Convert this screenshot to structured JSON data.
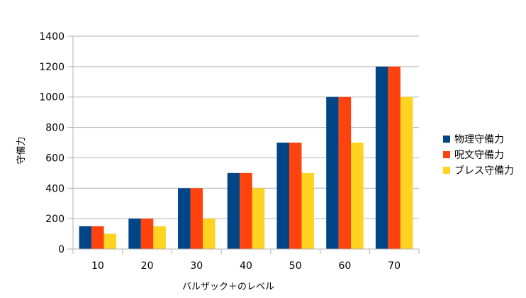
{
  "chart_data": {
    "type": "bar",
    "title": "",
    "xlabel": "バルザック＋のレベル",
    "ylabel": "守備力",
    "categories": [
      "10",
      "20",
      "30",
      "40",
      "50",
      "60",
      "70"
    ],
    "ylim": [
      0,
      1400
    ],
    "y_ticks": [
      0,
      200,
      400,
      600,
      800,
      1000,
      1200,
      1400
    ],
    "grid": true,
    "legend_position": "right",
    "series": [
      {
        "name": "物理守備力",
        "color": "#004586",
        "values": [
          150,
          200,
          400,
          500,
          700,
          1000,
          1200
        ]
      },
      {
        "name": "呪文守備力",
        "color": "#ff420e",
        "values": [
          150,
          200,
          400,
          500,
          700,
          1000,
          1200
        ]
      },
      {
        "name": "ブレス守備力",
        "color": "#ffd320",
        "values": [
          100,
          150,
          200,
          400,
          500,
          700,
          1000
        ]
      }
    ]
  }
}
